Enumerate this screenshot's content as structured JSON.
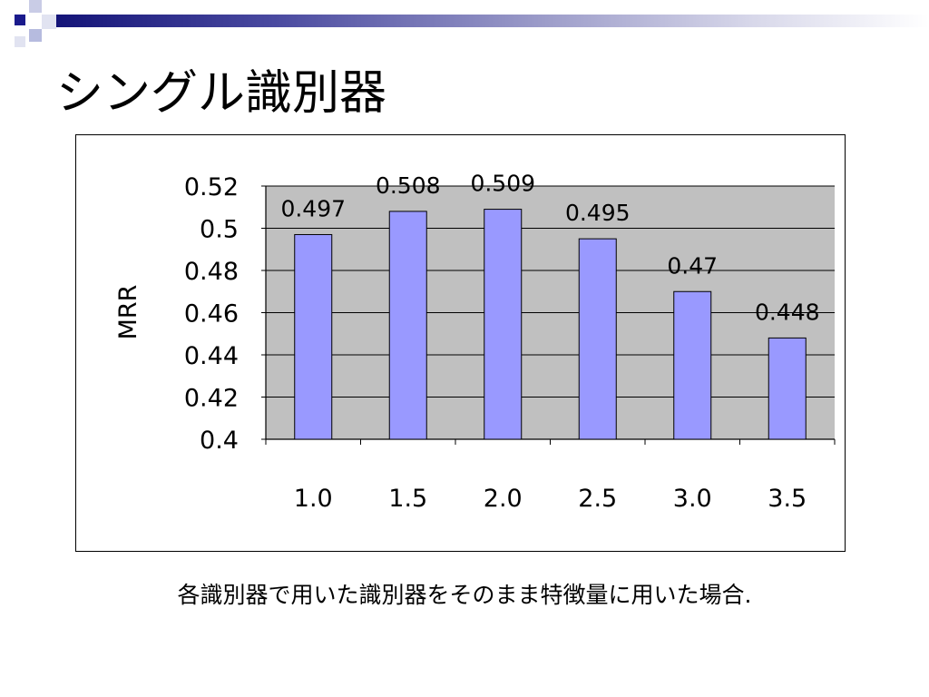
{
  "slide": {
    "title": "シングル識別器",
    "caption": "各識別器で用いた識別器をそのまま特徴量に用いた場合."
  },
  "colors": {
    "bar_fill": "#9999ff",
    "plot_bg": "#c0c0c0",
    "accent_dark": "#1a1a8c"
  },
  "chart_data": {
    "type": "bar",
    "categories": [
      "1.0",
      "1.5",
      "2.0",
      "2.5",
      "3.0",
      "3.5"
    ],
    "values": [
      0.497,
      0.508,
      0.509,
      0.495,
      0.47,
      0.448
    ],
    "data_labels": [
      "0.497",
      "0.508",
      "0.509",
      "0.495",
      "0.47",
      "0.448"
    ],
    "title": "",
    "xlabel": "",
    "ylabel": "MRR",
    "ylim": [
      0.4,
      0.52
    ],
    "yticks": [
      0.4,
      0.42,
      0.44,
      0.46,
      0.48,
      0.5,
      0.52
    ],
    "ytick_labels": [
      "0.4",
      "0.42",
      "0.44",
      "0.46",
      "0.48",
      "0.5",
      "0.52"
    ],
    "grid": true,
    "legend": "none"
  }
}
